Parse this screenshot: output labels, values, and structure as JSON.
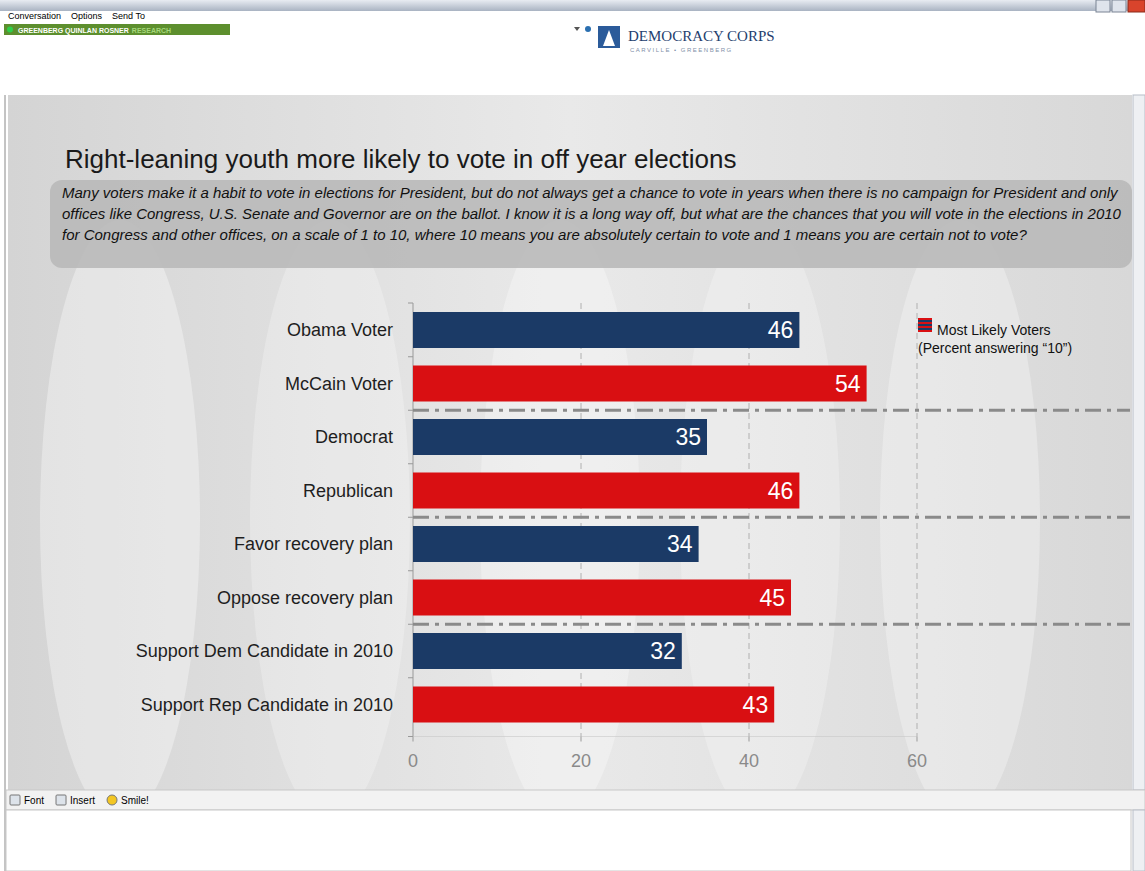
{
  "window": {
    "menu": [
      "Conversation",
      "Options",
      "Send To"
    ],
    "banner": [
      "GREENBERG QUINLAN ROSNER",
      "RESEARCH"
    ],
    "logo": "DEMOCRACY CORPS",
    "logo_subtitle": "CARVILLE • GREENBERG",
    "toolbar": [
      "Font",
      "Insert",
      "Smile!"
    ]
  },
  "chart_data": {
    "type": "bar",
    "orientation": "horizontal",
    "title": "Right-leaning youth more likely to vote in off year elections",
    "subtitle": "Many voters make it a habit to vote in elections for President, but do not always get a chance to vote in years when there is no campaign for President and only offices like Congress, U.S. Senate and Governor are on the ballot. I know it is a long way off, but what are the chances that you will vote in the elections in 2010 for Congress and other offices, on a scale of 1 to 10, where 10 means you are absolutely certain to vote and 1 means you are certain not to vote?",
    "categories": [
      "Obama Voter",
      "McCain Voter",
      "Democrat",
      "Republican",
      "Favor recovery plan",
      "Oppose recovery plan",
      "Support Dem Candidate in 2010",
      "Support Rep Candidate in 2010"
    ],
    "series": [
      {
        "name": "Most Likely Voters (Percent answering “10”)",
        "values": [
          46,
          54,
          35,
          46,
          34,
          45,
          32,
          43
        ]
      }
    ],
    "colors": [
      "#1b3a66",
      "#d90f12",
      "#1b3a66",
      "#d90f12",
      "#1b3a66",
      "#d90f12",
      "#1b3a66",
      "#d90f12"
    ],
    "xlim": [
      0,
      60
    ],
    "xticks": [
      0,
      20,
      40,
      60
    ],
    "grid": true,
    "data_labels": true,
    "legend": "top-right"
  }
}
